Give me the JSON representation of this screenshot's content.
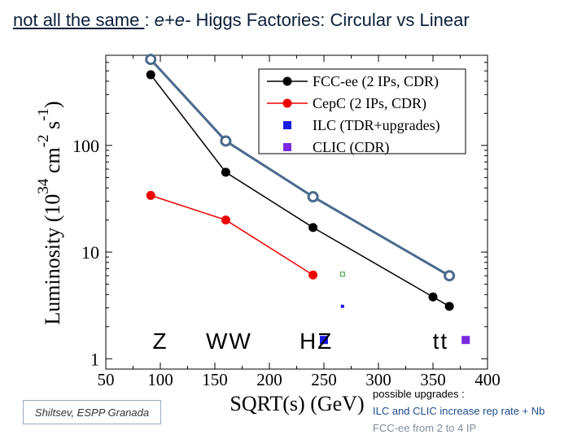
{
  "title": {
    "part1": "not all the same ",
    "sep": ": ",
    "part2": "e+e-",
    "part3": " Higgs Factories: Circular vs Linear"
  },
  "chart_data": {
    "type": "scatter",
    "xscale": "linear",
    "yscale": "log",
    "xlim": [
      50,
      400
    ],
    "ylim": [
      0.8,
      700
    ],
    "xticks": [
      50,
      100,
      150,
      200,
      250,
      300,
      350,
      400
    ],
    "yticks": [
      1,
      10,
      100
    ],
    "ytick_labels": [
      "1",
      "10",
      "100"
    ],
    "xlabel": "SQRT(s) (GeV)",
    "ylabel": {
      "main": "Luminosity (10",
      "sup1": "34",
      "mid": " cm",
      "sup2": "-2",
      "mid2": " s",
      "sup3": "-1",
      "end": ")"
    },
    "series": [
      {
        "name": "FCC-ee (2 IPs, CDR)",
        "color": "#000000",
        "marker": "circle",
        "line": true,
        "x": [
          91.2,
          160,
          240,
          350,
          365
        ],
        "y": [
          460,
          56,
          17,
          3.8,
          3.1
        ]
      },
      {
        "name": "CepC (2 IPs, CDR)",
        "color": "#ee0000",
        "marker": "circle",
        "line": true,
        "x": [
          91.2,
          160,
          240
        ],
        "y": [
          34,
          20,
          6.1
        ]
      },
      {
        "name": "ILC (TDR+upgrades)",
        "color": "#1a1ae6",
        "marker": "square",
        "line": false,
        "x": [
          250
        ],
        "y": [
          1.5
        ]
      },
      {
        "name": "CLIC (CDR)",
        "color": "#7a2ae0",
        "marker": "square",
        "line": false,
        "x": [
          380
        ],
        "y": [
          1.5
        ]
      },
      {
        "name": "FCC-ee 4 IP upgrade",
        "color": "#4a6a8c",
        "marker": "open-circle",
        "line": true,
        "legend": false,
        "x": [
          91.2,
          160,
          240,
          365
        ],
        "y": [
          640,
          110,
          33,
          6
        ]
      },
      {
        "name": "ILC upgrade",
        "color": "#1a1ae6",
        "marker": "small-square",
        "line": false,
        "legend": false,
        "x": [
          267
        ],
        "y": [
          3.1
        ]
      },
      {
        "name": "CLIC upgrade",
        "color": "#2a9a2a",
        "marker": "small-open-square",
        "line": false,
        "legend": false,
        "x": [
          267
        ],
        "y": [
          6.2
        ]
      }
    ],
    "annotations": [
      {
        "text": "Z",
        "x": 100
      },
      {
        "text": "WW",
        "x": 163
      },
      {
        "text": "HZ",
        "x": 243
      },
      {
        "text": "tt",
        "x": 357
      }
    ],
    "legend_position": "top-right"
  },
  "credit": "Shiltsev, ESPP Granada",
  "notes": {
    "line1": "possible upgrades :",
    "line2": "ILC and CLIC increase rep rate + Nb",
    "line3": "FCC-ee from 2  to 4 IP"
  },
  "colors": {
    "title": "#0c1f3a",
    "note_text": "#1f4e8c",
    "upgrade": "#4a6a8c"
  }
}
